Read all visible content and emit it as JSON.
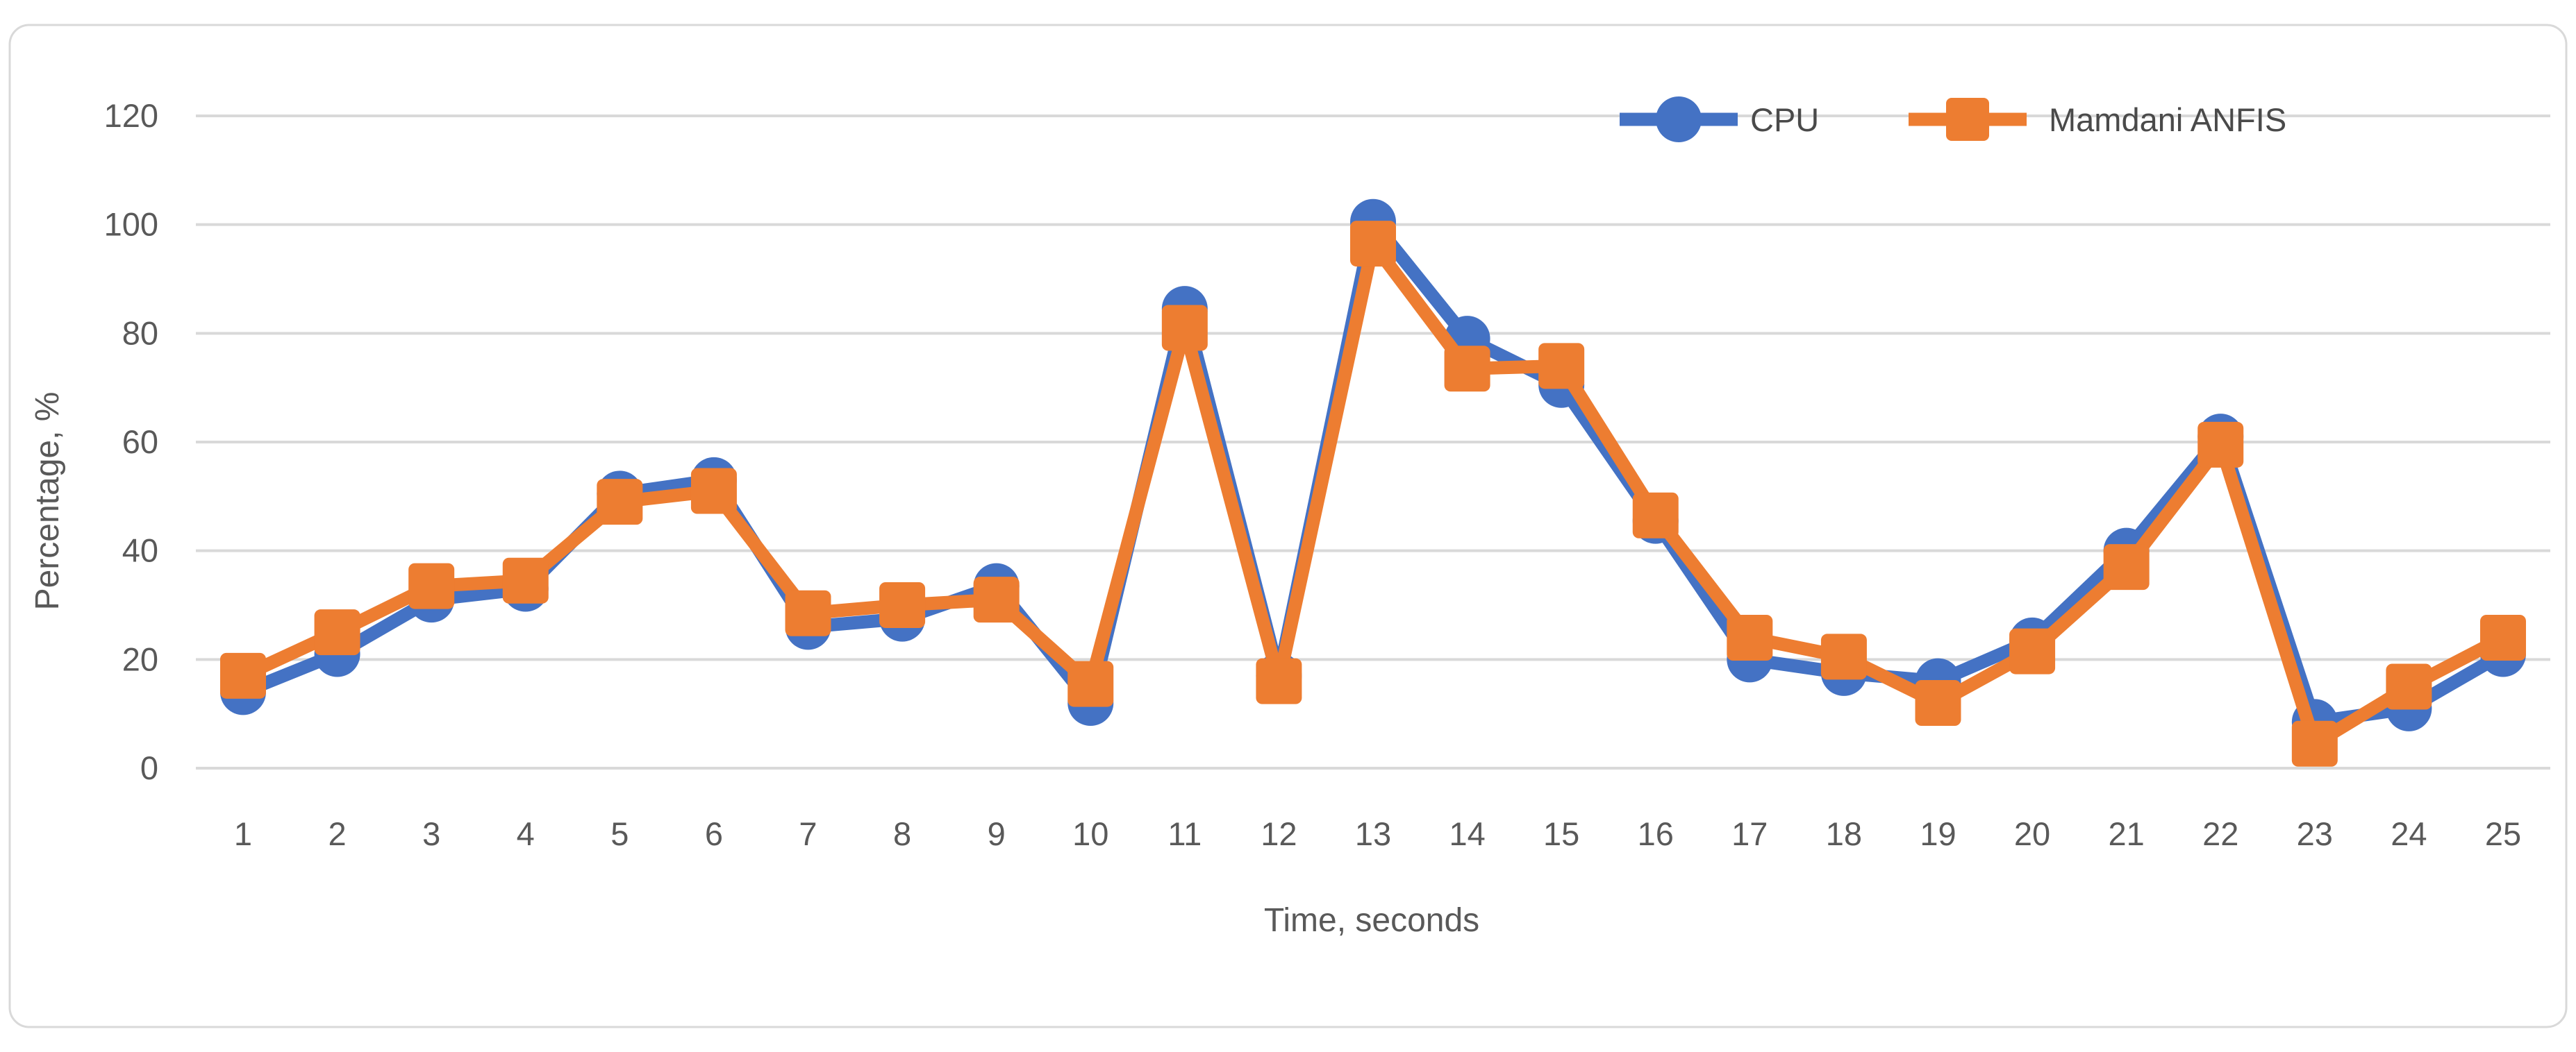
{
  "figure": {
    "background_color": "#FFFFFF",
    "border_color": "#D9D9D9",
    "gridline_color": "#D9D9D9",
    "axis_text_color": "#595959",
    "legend_text_color": "#4a4a4a"
  },
  "legend": {
    "cpu_label": "CPU",
    "anfis_label": "Mamdani ANFIS"
  },
  "chart_data": {
    "type": "line",
    "title": "",
    "xlabel": "Time, seconds",
    "ylabel": "Percentage, %",
    "x": [
      1,
      2,
      3,
      4,
      5,
      6,
      7,
      8,
      9,
      10,
      11,
      12,
      13,
      14,
      15,
      16,
      17,
      18,
      19,
      20,
      21,
      22,
      23,
      24,
      25
    ],
    "series": [
      {
        "name": "CPU",
        "color": "#4472C4",
        "marker": "circle",
        "values": [
          14,
          21,
          31,
          33,
          50.5,
          53,
          26,
          27.5,
          33.5,
          12,
          84.5,
          17,
          100.5,
          79,
          70.5,
          45.5,
          20,
          17.5,
          16,
          23.5,
          40,
          61,
          8.5,
          11,
          21
        ]
      },
      {
        "name": "Mamdani ANFIS",
        "color": "#ED7D31",
        "marker": "square",
        "values": [
          17,
          25,
          33.5,
          34.5,
          49,
          51,
          28.5,
          30,
          31,
          15.5,
          81,
          16,
          96.5,
          73.5,
          74,
          46.5,
          24,
          20.5,
          12,
          21.5,
          37,
          59.5,
          4.5,
          15,
          24
        ]
      }
    ],
    "ylim": [
      0,
      120
    ],
    "yticks": [
      0,
      20,
      40,
      60,
      80,
      100,
      120
    ],
    "grid": true,
    "legend_position": "top-right"
  }
}
